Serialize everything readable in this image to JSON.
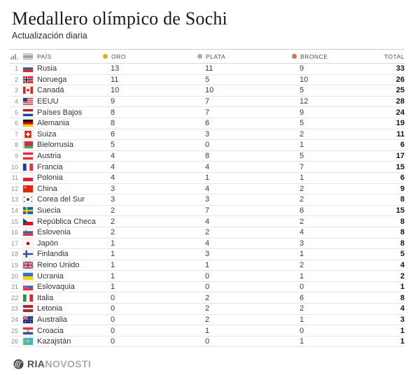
{
  "header": {
    "title": "Medallero olímpico de Sochi",
    "subtitle": "Actualización diaria"
  },
  "chart_data": {
    "type": "table",
    "title": "Medallero olímpico de Sochi",
    "subtitle": "Actualización diaria",
    "columns": [
      "PAÍS",
      "ORO",
      "PLATA",
      "BRONCE",
      "TOTAL"
    ],
    "medal_colors": {
      "gold": "#E2AC16",
      "silver": "#ADADAD",
      "bronze": "#D1754D"
    },
    "rows": [
      {
        "rank": 1,
        "flag": "ru",
        "country": "Rusia",
        "gold": 13,
        "silver": 11,
        "bronze": 9,
        "total": 33
      },
      {
        "rank": 2,
        "flag": "no",
        "country": "Noruega",
        "gold": 11,
        "silver": 5,
        "bronze": 10,
        "total": 26
      },
      {
        "rank": 3,
        "flag": "ca",
        "country": "Canadá",
        "gold": 10,
        "silver": 10,
        "bronze": 5,
        "total": 25
      },
      {
        "rank": 4,
        "flag": "us",
        "country": "EEUU",
        "gold": 9,
        "silver": 7,
        "bronze": 12,
        "total": 28
      },
      {
        "rank": 5,
        "flag": "nl",
        "country": "Países Bajos",
        "gold": 8,
        "silver": 7,
        "bronze": 9,
        "total": 24
      },
      {
        "rank": 6,
        "flag": "de",
        "country": "Alemania",
        "gold": 8,
        "silver": 6,
        "bronze": 5,
        "total": 19
      },
      {
        "rank": 7,
        "flag": "ch",
        "country": "Suiza",
        "gold": 6,
        "silver": 3,
        "bronze": 2,
        "total": 11
      },
      {
        "rank": 8,
        "flag": "by",
        "country": "Bielorrusia",
        "gold": 5,
        "silver": 0,
        "bronze": 1,
        "total": 6
      },
      {
        "rank": 9,
        "flag": "at",
        "country": "Austria",
        "gold": 4,
        "silver": 8,
        "bronze": 5,
        "total": 17
      },
      {
        "rank": 10,
        "flag": "fr",
        "country": "Francia",
        "gold": 4,
        "silver": 4,
        "bronze": 7,
        "total": 15
      },
      {
        "rank": 11,
        "flag": "pl",
        "country": "Polonia",
        "gold": 4,
        "silver": 1,
        "bronze": 1,
        "total": 6
      },
      {
        "rank": 12,
        "flag": "cn",
        "country": "China",
        "gold": 3,
        "silver": 4,
        "bronze": 2,
        "total": 9
      },
      {
        "rank": 13,
        "flag": "kr",
        "country": "Corea del Sur",
        "gold": 3,
        "silver": 3,
        "bronze": 2,
        "total": 8
      },
      {
        "rank": 14,
        "flag": "se",
        "country": "Suecia",
        "gold": 2,
        "silver": 7,
        "bronze": 6,
        "total": 15
      },
      {
        "rank": 15,
        "flag": "cz",
        "country": "República Checa",
        "gold": 2,
        "silver": 4,
        "bronze": 2,
        "total": 8
      },
      {
        "rank": 16,
        "flag": "si",
        "country": "Eslovenia",
        "gold": 2,
        "silver": 2,
        "bronze": 4,
        "total": 8
      },
      {
        "rank": 17,
        "flag": "jp",
        "country": "Japón",
        "gold": 1,
        "silver": 4,
        "bronze": 3,
        "total": 8
      },
      {
        "rank": 18,
        "flag": "fi",
        "country": "Finlandia",
        "gold": 1,
        "silver": 3,
        "bronze": 1,
        "total": 5
      },
      {
        "rank": 19,
        "flag": "gb",
        "country": "Reino Unido",
        "gold": 1,
        "silver": 1,
        "bronze": 2,
        "total": 4
      },
      {
        "rank": 20,
        "flag": "ua",
        "country": "Ucrania",
        "gold": 1,
        "silver": 0,
        "bronze": 1,
        "total": 2
      },
      {
        "rank": 21,
        "flag": "sk",
        "country": "Eslovaquia",
        "gold": 1,
        "silver": 0,
        "bronze": 0,
        "total": 1
      },
      {
        "rank": 22,
        "flag": "it",
        "country": "Italia",
        "gold": 0,
        "silver": 2,
        "bronze": 6,
        "total": 8
      },
      {
        "rank": 23,
        "flag": "lv",
        "country": "Letonia",
        "gold": 0,
        "silver": 2,
        "bronze": 2,
        "total": 4
      },
      {
        "rank": 24,
        "flag": "au",
        "country": "Australia",
        "gold": 0,
        "silver": 2,
        "bronze": 1,
        "total": 3
      },
      {
        "rank": 25,
        "flag": "hr",
        "country": "Croacia",
        "gold": 0,
        "silver": 1,
        "bronze": 0,
        "total": 1
      },
      {
        "rank": 26,
        "flag": "kz",
        "country": "Kazajstán",
        "gold": 0,
        "silver": 0,
        "bronze": 1,
        "total": 1
      }
    ]
  },
  "icons": {
    "rank_column": "bar-chart-icon",
    "flag_column": "flag-placeholder-icon",
    "footer": "globe-icon"
  },
  "footer": {
    "brand_primary": "RIA",
    "brand_secondary": "NOVOSTI"
  }
}
